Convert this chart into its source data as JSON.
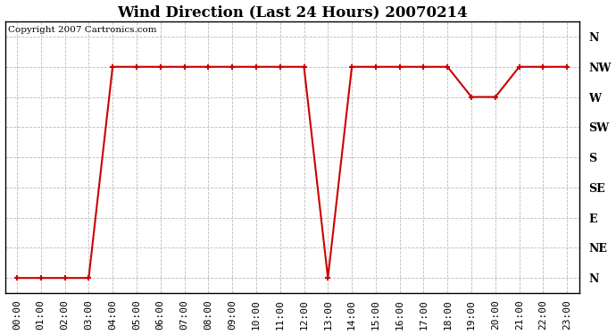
{
  "title": "Wind Direction (Last 24 Hours) 20070214",
  "copyright": "Copyright 2007 Cartronics.com",
  "background_color": "#ffffff",
  "plot_bg_color": "#ffffff",
  "line_color": "#cc0000",
  "marker_color": "#cc0000",
  "grid_color": "#bbbbbb",
  "x_labels": [
    "00:00",
    "01:00",
    "02:00",
    "03:00",
    "04:00",
    "05:00",
    "06:00",
    "07:00",
    "08:00",
    "09:00",
    "10:00",
    "11:00",
    "12:00",
    "13:00",
    "14:00",
    "15:00",
    "16:00",
    "17:00",
    "18:00",
    "19:00",
    "20:00",
    "21:00",
    "22:00",
    "23:00"
  ],
  "y_labels": [
    "N",
    "NE",
    "E",
    "SE",
    "S",
    "SW",
    "W",
    "NW",
    "N"
  ],
  "y_values": [
    0,
    1,
    2,
    3,
    4,
    5,
    6,
    7,
    8
  ],
  "wind_data": [
    0,
    0,
    0,
    0,
    7,
    7,
    7,
    7,
    7,
    7,
    7,
    7,
    7,
    0,
    7,
    7,
    7,
    7,
    7,
    6,
    6,
    7,
    7,
    7
  ],
  "title_fontsize": 12,
  "copyright_fontsize": 7.5,
  "tick_fontsize": 8,
  "ylabel_fontsize": 9
}
